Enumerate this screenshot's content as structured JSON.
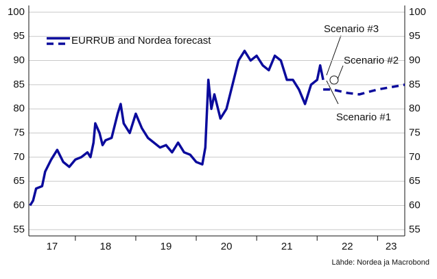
{
  "chart_data": {
    "type": "line",
    "ylim": [
      53.7,
      101.4
    ],
    "yticks": [
      55,
      60,
      65,
      70,
      75,
      80,
      85,
      90,
      95,
      100
    ],
    "xlim": [
      17.23,
      23.45
    ],
    "xticks": [
      {
        "value": 17,
        "label": "17"
      },
      {
        "value": 18,
        "label": "18"
      },
      {
        "value": 19,
        "label": "19"
      },
      {
        "value": 20,
        "label": "20"
      },
      {
        "value": 21,
        "label": "21"
      },
      {
        "value": 22,
        "label": "22"
      },
      {
        "value": 23,
        "label": "23"
      }
    ],
    "grid": true,
    "series": [
      {
        "name": "EURRUB and Nordea forecast",
        "color": "#0b0b9c",
        "style": "solid",
        "x": [
          17.25,
          17.3,
          17.35,
          17.45,
          17.5,
          17.6,
          17.7,
          17.8,
          17.9,
          18.0,
          18.1,
          18.2,
          18.25,
          18.3,
          18.33,
          18.4,
          18.45,
          18.5,
          18.6,
          18.7,
          18.75,
          18.8,
          18.9,
          19.0,
          19.1,
          19.2,
          19.3,
          19.4,
          19.5,
          19.6,
          19.7,
          19.8,
          19.9,
          20.0,
          20.1,
          20.15,
          20.2,
          20.25,
          20.3,
          20.4,
          20.5,
          20.6,
          20.7,
          20.8,
          20.9,
          21.0,
          21.1,
          21.2,
          21.3,
          21.4,
          21.5,
          21.6,
          21.7,
          21.8,
          21.9,
          22.0,
          22.05,
          22.1
        ],
        "values": [
          60,
          61,
          63.5,
          64,
          67,
          69.5,
          71.5,
          69,
          68,
          69.5,
          70,
          71,
          70,
          73,
          77,
          75,
          72.5,
          73.5,
          74,
          79,
          81,
          77,
          75,
          79,
          76,
          74,
          73,
          72,
          72.5,
          71,
          73,
          71,
          70.5,
          69,
          68.5,
          72,
          86,
          80,
          83,
          78,
          80,
          85,
          90,
          92,
          90,
          91,
          89,
          88,
          91,
          90,
          86,
          86,
          84,
          81,
          85,
          86,
          89,
          86
        ]
      },
      {
        "color": "#0b0b9c",
        "style": "dashed",
        "x": [
          22.1,
          22.25,
          22.5,
          22.7,
          23.0,
          23.45
        ],
        "values": [
          84,
          84,
          83.3,
          83,
          84,
          85
        ]
      }
    ],
    "annotations": [
      "Scenario #3",
      "Scenario #2",
      "Scenario #1"
    ],
    "source": "Lähde: Nordea ja Macrobond"
  }
}
